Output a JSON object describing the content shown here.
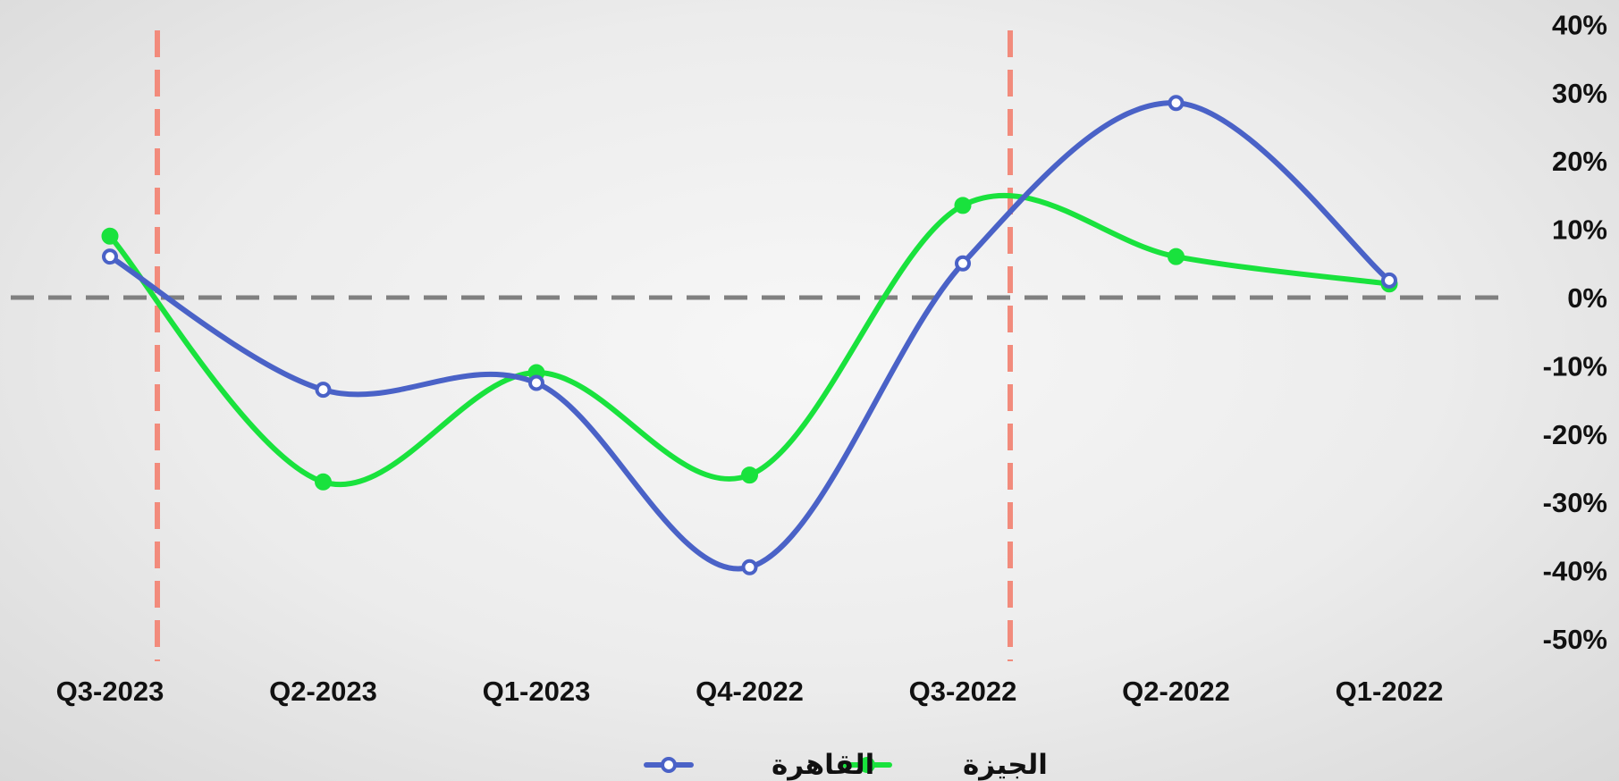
{
  "chart_data": {
    "type": "line",
    "categories": [
      "Q3-2023",
      "Q2-2023",
      "Q1-2023",
      "Q4-2022",
      "Q3-2022",
      "Q2-2022",
      "Q1-2022"
    ],
    "series": [
      {
        "name": "القاهرة",
        "color": "#4a62c7",
        "values": [
          6,
          -13.5,
          -12.5,
          -39.5,
          5,
          28.5,
          2.5
        ]
      },
      {
        "name": "الجيزة",
        "color": "#19e23d",
        "values": [
          9,
          -27,
          -11,
          -26,
          13.5,
          6,
          2
        ]
      }
    ],
    "ylim": [
      -50,
      40
    ],
    "yticks": [
      "40%",
      "30%",
      "20%",
      "10%",
      "0%",
      "-10%",
      "-20%",
      "-30%",
      "-40%",
      "-50%"
    ],
    "ytick_values": [
      40,
      30,
      20,
      10,
      0,
      -10,
      -20,
      -30,
      -40,
      -50
    ],
    "zero_line": {
      "value": 0,
      "color": "#808080",
      "style": "dashed"
    },
    "vertical_markers": [
      {
        "after_category": "Q3-2023",
        "color": "#f28b7c",
        "style": "dashed"
      },
      {
        "after_category": "Q3-2022",
        "color": "#f28b7c",
        "style": "dashed"
      }
    ],
    "legend_position": "bottom",
    "y_axis_position": "right",
    "grid": false
  }
}
